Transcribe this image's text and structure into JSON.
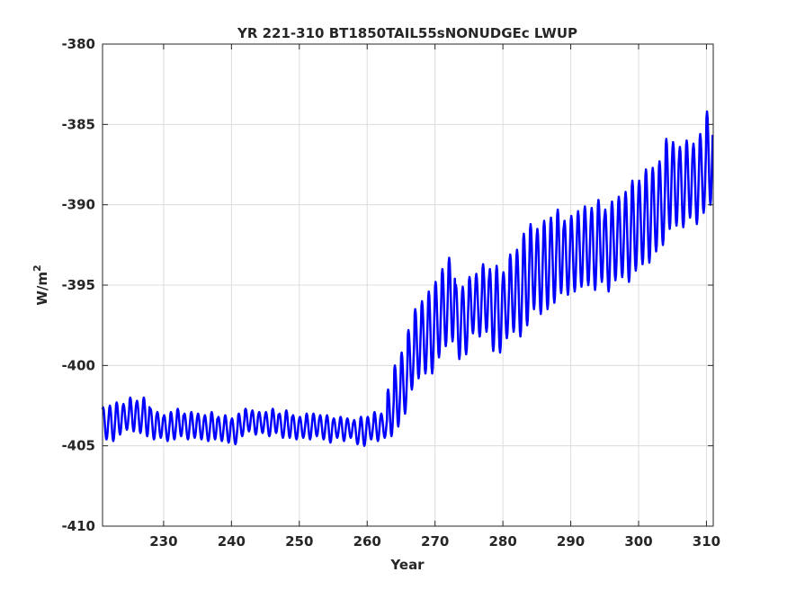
{
  "chart_data": {
    "type": "line",
    "title": "YR 221-310 BT1850TAIL55sNONUDGEc LWUP",
    "xlabel": "Year",
    "ylabel": "W/m",
    "ylabel_superscript": "2",
    "xlim": [
      221,
      311
    ],
    "ylim": [
      -410,
      -380
    ],
    "xticks": [
      230,
      240,
      250,
      260,
      270,
      280,
      290,
      300,
      310
    ],
    "yticks": [
      -380,
      -385,
      -390,
      -395,
      -400,
      -405,
      -410
    ],
    "grid": true,
    "line_color": "#0000ff",
    "series": [
      {
        "description": "monthly values; annual-cycle trough/peak envelope per year",
        "years": [
          221,
          222,
          223,
          224,
          225,
          226,
          227,
          228,
          229,
          230,
          231,
          232,
          233,
          234,
          235,
          236,
          237,
          238,
          239,
          240,
          241,
          242,
          243,
          244,
          245,
          246,
          247,
          248,
          249,
          250,
          251,
          252,
          253,
          254,
          255,
          256,
          257,
          258,
          259,
          260,
          261,
          262,
          263,
          264,
          265,
          266,
          267,
          268,
          269,
          270,
          271,
          272,
          273,
          274,
          275,
          276,
          277,
          278,
          279,
          280,
          281,
          282,
          283,
          284,
          285,
          286,
          287,
          288,
          289,
          290,
          291,
          292,
          293,
          294,
          295,
          296,
          297,
          298,
          299,
          300,
          301,
          302,
          303,
          304,
          305,
          306,
          307,
          308,
          309,
          310
        ],
        "min": [
          -404.6,
          -404.7,
          -404.3,
          -404.0,
          -404.1,
          -404.2,
          -404.4,
          -404.6,
          -404.5,
          -404.7,
          -404.6,
          -404.4,
          -404.6,
          -404.5,
          -404.6,
          -404.7,
          -404.6,
          -404.7,
          -404.8,
          -404.9,
          -404.4,
          -404.1,
          -404.3,
          -404.2,
          -404.4,
          -404.2,
          -404.5,
          -404.5,
          -404.6,
          -404.5,
          -404.6,
          -404.4,
          -404.6,
          -404.8,
          -404.5,
          -404.7,
          -404.5,
          -404.9,
          -405.0,
          -404.6,
          -404.7,
          -404.5,
          -404.4,
          -403.8,
          -403.0,
          -401.5,
          -400.8,
          -400.5,
          -400.5,
          -399.5,
          -398.8,
          -398.5,
          -399.6,
          -399.3,
          -398.0,
          -398.2,
          -397.9,
          -399.1,
          -399.2,
          -398.3,
          -397.9,
          -398.2,
          -397.5,
          -396.5,
          -396.8,
          -396.5,
          -396.1,
          -395.5,
          -395.6,
          -395.4,
          -395.1,
          -395.0,
          -395.3,
          -394.8,
          -395.4,
          -394.7,
          -394.5,
          -394.8,
          -394.1,
          -393.7,
          -393.6,
          -392.9,
          -392.5,
          -391.5,
          -391.3,
          -391.4,
          -390.8,
          -391.2,
          -390.5,
          -390.0
        ],
        "max": [
          -402.6,
          -402.5,
          -402.3,
          -402.4,
          -402.0,
          -402.2,
          -402.0,
          -402.7,
          -402.9,
          -403.1,
          -402.9,
          -402.7,
          -403.0,
          -402.9,
          -403.0,
          -403.1,
          -402.9,
          -403.2,
          -403.1,
          -403.3,
          -403.0,
          -402.7,
          -402.8,
          -402.9,
          -402.9,
          -402.7,
          -403.0,
          -402.8,
          -403.1,
          -403.2,
          -403.0,
          -403.0,
          -403.1,
          -403.1,
          -403.3,
          -403.2,
          -403.3,
          -403.4,
          -403.2,
          -403.2,
          -402.9,
          -403.0,
          -401.5,
          -400.0,
          -399.2,
          -397.8,
          -396.5,
          -396.0,
          -395.4,
          -394.8,
          -394.0,
          -393.3,
          -395.0,
          -395.1,
          -394.5,
          -394.3,
          -393.7,
          -394.0,
          -393.8,
          -394.2,
          -393.1,
          -392.8,
          -391.8,
          -391.2,
          -391.5,
          -391.0,
          -390.8,
          -390.3,
          -391.0,
          -390.7,
          -390.4,
          -390.1,
          -390.2,
          -389.7,
          -390.3,
          -389.8,
          -389.5,
          -389.2,
          -388.5,
          -388.5,
          -387.8,
          -387.7,
          -387.3,
          -385.9,
          -386.1,
          -386.4,
          -386.0,
          -386.2,
          -385.6,
          -384.2
        ]
      }
    ]
  }
}
